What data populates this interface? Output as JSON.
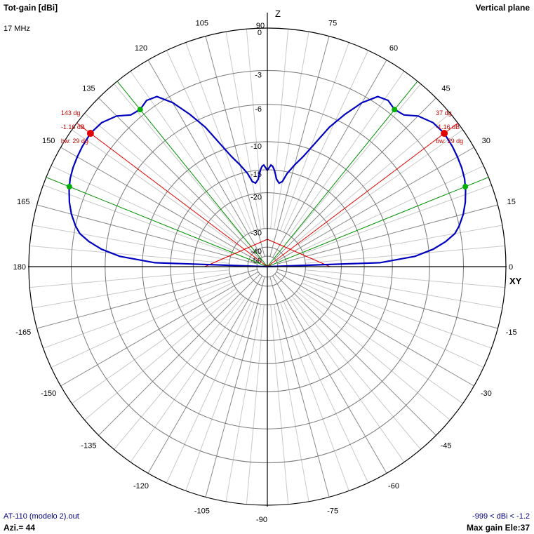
{
  "header": {
    "title": "Tot-gain [dBi]",
    "plane": "Vertical plane",
    "frequency": "17 MHz"
  },
  "footer": {
    "file": "AT-110 (modelo 2).out",
    "azimuth": "Azi.= 44",
    "range": "-999 < dBi < -1.2",
    "max_gain": "Max gain Ele:37"
  },
  "chart_data": {
    "type": "polar",
    "title": "Tot-gain [dBi]",
    "axis_labels": {
      "z": "Z",
      "xy": "XY"
    },
    "angle_ticks": [
      {
        "deg": 0,
        "label": "0"
      },
      {
        "deg": 15,
        "label": "15"
      },
      {
        "deg": 30,
        "label": "30"
      },
      {
        "deg": 45,
        "label": "45"
      },
      {
        "deg": 60,
        "label": "60"
      },
      {
        "deg": 75,
        "label": "75"
      },
      {
        "deg": 90,
        "label": "90"
      },
      {
        "deg": 105,
        "label": "105"
      },
      {
        "deg": 120,
        "label": "120"
      },
      {
        "deg": 135,
        "label": "135"
      },
      {
        "deg": 150,
        "label": "150"
      },
      {
        "deg": 165,
        "label": "165"
      },
      {
        "deg": 180,
        "label": "180"
      },
      {
        "deg": -165,
        "label": "-165"
      },
      {
        "deg": -150,
        "label": "-150"
      },
      {
        "deg": -135,
        "label": "-135"
      },
      {
        "deg": -120,
        "label": "-120"
      },
      {
        "deg": -105,
        "label": "-105"
      },
      {
        "deg": -90,
        "label": "-90"
      },
      {
        "deg": -75,
        "label": "-75"
      },
      {
        "deg": -60,
        "label": "-60"
      },
      {
        "deg": -45,
        "label": "-45"
      },
      {
        "deg": -30,
        "label": "-30"
      },
      {
        "deg": -15,
        "label": "-15"
      }
    ],
    "rings": [
      {
        "db": 0,
        "label": "0"
      },
      {
        "db": -3,
        "label": "-3"
      },
      {
        "db": -6,
        "label": "-6"
      },
      {
        "db": -10,
        "label": "-10"
      },
      {
        "db": -15,
        "label": "-15"
      },
      {
        "db": -20,
        "label": "-20"
      },
      {
        "db": -30,
        "label": "-30"
      },
      {
        "db": -40,
        "label": "-40"
      },
      {
        "db": -50,
        "label": "-50"
      }
    ],
    "ring_scale_db": [
      0,
      -1,
      -2,
      -3,
      -4,
      -5,
      -6,
      -7,
      -8,
      -9,
      -10,
      -12,
      -15,
      -17,
      -20,
      -25,
      -30,
      -35,
      -40,
      -50
    ],
    "ring_scale_r": [
      1,
      0.938,
      0.878,
      0.822,
      0.774,
      0.726,
      0.68,
      0.64,
      0.6,
      0.562,
      0.524,
      0.472,
      0.406,
      0.362,
      0.31,
      0.24,
      0.16,
      0.12,
      0.082,
      0.044
    ],
    "series": [
      {
        "color": "#0000c0",
        "angles": [
          0,
          2,
          4,
          6,
          8,
          10,
          12,
          15,
          18,
          21,
          24,
          27,
          30,
          33,
          37,
          41,
          45,
          48,
          51,
          54,
          57,
          60,
          63,
          66,
          69,
          72,
          75,
          78,
          80,
          82,
          84,
          85,
          86,
          87,
          88,
          89,
          90,
          91,
          92,
          93,
          94,
          95,
          96,
          98,
          100,
          102,
          105,
          108,
          111,
          114,
          117,
          120,
          123,
          126,
          129,
          132,
          135,
          139,
          143,
          147,
          150,
          153,
          156,
          159,
          162,
          165,
          168,
          170,
          172,
          174,
          176,
          178,
          180
        ],
        "gain_db": [
          -999,
          -12,
          -7.5,
          -5.6,
          -4.4,
          -3.5,
          -3,
          -2.5,
          -2.1,
          -1.8,
          -1.55,
          -1.4,
          -1.3,
          -1.22,
          -1.16,
          -1.3,
          -1.75,
          -2.4,
          -2.55,
          -2.3,
          -2.5,
          -3.6,
          -5.2,
          -7,
          -9.3,
          -11.5,
          -13.4,
          -15.3,
          -17,
          -17.5,
          -16.7,
          -15.8,
          -14.9,
          -14.3,
          -14.1,
          -14.6,
          -15.1,
          -14.6,
          -14.1,
          -14.3,
          -14.9,
          -15.8,
          -16.7,
          -17.5,
          -17,
          -15.3,
          -13.4,
          -11.5,
          -9.3,
          -7,
          -5.2,
          -3.6,
          -2.5,
          -2.3,
          -2.55,
          -2.4,
          -1.75,
          -1.3,
          -1.16,
          -1.22,
          -1.3,
          -1.4,
          -1.55,
          -1.8,
          -2.1,
          -2.5,
          -3,
          -3.5,
          -4.4,
          -5.6,
          -7.5,
          -12,
          -999
        ]
      }
    ],
    "lobe_markers": [
      {
        "deg": 37,
        "label": "37 dg",
        "gain_label": "-1.16 dB",
        "bw_label": "bw: 29 dg",
        "db": -1.16
      },
      {
        "deg": 143,
        "label": "143 dg",
        "gain_label": "-1.16 dB",
        "bw_label": "bw: 29 dg",
        "db": -1.16
      }
    ],
    "beamwidth_points_deg": [
      22,
      51,
      129,
      158
    ],
    "secondary_lobes": [
      {
        "db": -40,
        "deg_left": 167,
        "deg_right": 13
      }
    ]
  }
}
